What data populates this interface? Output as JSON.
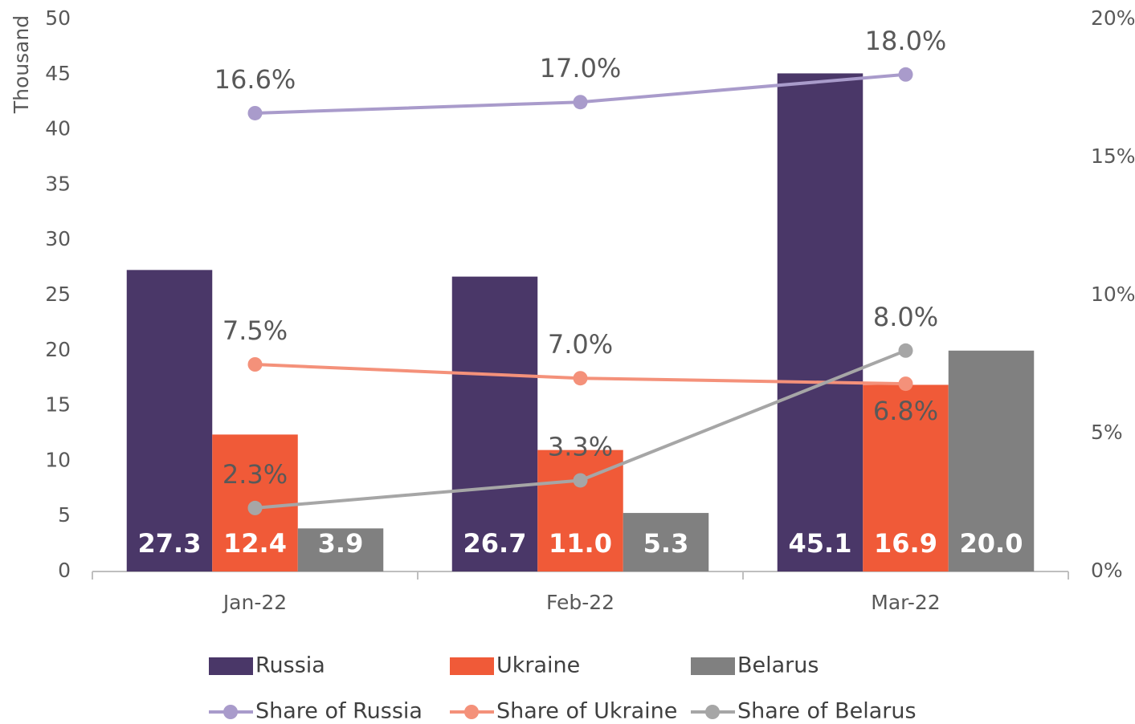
{
  "chart_data": {
    "type": "bar",
    "y_label": "Thousand",
    "categories": [
      "Jan-22",
      "Feb-22",
      "Mar-22"
    ],
    "ylim": [
      0,
      50
    ],
    "yticks": [
      0,
      5,
      10,
      15,
      20,
      25,
      30,
      35,
      40,
      45,
      50
    ],
    "y2lim": [
      0,
      20
    ],
    "y2ticks": [
      {
        "value": 0,
        "label": "0%"
      },
      {
        "value": 5,
        "label": "5%"
      },
      {
        "value": 10,
        "label": "10%"
      },
      {
        "value": 15,
        "label": "15%"
      },
      {
        "value": 20,
        "label": "20%"
      }
    ],
    "series": [
      {
        "name": "Russia",
        "type": "bar",
        "color": "#4a3768",
        "values": [
          27.3,
          26.7,
          45.1
        ],
        "value_labels": [
          "27.3",
          "26.7",
          "45.1"
        ]
      },
      {
        "name": "Ukraine",
        "type": "bar",
        "color": "#f05a38",
        "values": [
          12.4,
          11.0,
          16.9
        ],
        "value_labels": [
          "12.4",
          "11.0",
          "16.9"
        ]
      },
      {
        "name": "Belarus",
        "type": "bar",
        "color": "#808080",
        "values": [
          3.9,
          5.3,
          20.0
        ],
        "value_labels": [
          "3.9",
          "5.3",
          "20.0"
        ]
      },
      {
        "name": "Share of Russia",
        "type": "line",
        "axis": "y2",
        "color": "#a99bcb",
        "values": [
          16.6,
          17.0,
          18.0
        ],
        "value_labels": [
          "16.6%",
          "17.0%",
          "18.0%"
        ]
      },
      {
        "name": "Share of Ukraine",
        "type": "line",
        "axis": "y2",
        "color": "#f4917a",
        "values": [
          7.5,
          7.0,
          6.8
        ],
        "value_labels": [
          "7.5%",
          "7.0%",
          "6.8%"
        ]
      },
      {
        "name": "Share of Belarus",
        "type": "line",
        "axis": "y2",
        "color": "#a6a6a6",
        "values": [
          2.3,
          3.3,
          8.0
        ],
        "value_labels": [
          "2.3%",
          "3.3%",
          "8.0%"
        ]
      }
    ]
  }
}
